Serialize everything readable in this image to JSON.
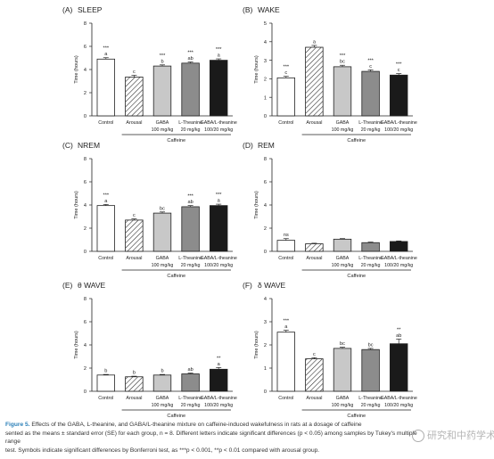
{
  "figure": {
    "caption_label": "Figure 5.",
    "caption_lines": [
      "Effects of the GABA, L-theanine, and GABA/L-theanine mixture on caffeine-induced wakefulness in rats at a dosage of caffeine",
      "sented as the means ± standard error (SE) for each group, n = 8. Different letters indicate significant differences (p < 0.05) among samples by Tukey's multiple range",
      "test. Symbols indicate significant differences by Bonferroni test, as ***p < 0.001, **p < 0.01 compared with arousal group."
    ],
    "watermark": "研究和中药学术"
  },
  "chart_data": [
    {
      "panel": "(A)",
      "title": "SLEEP",
      "type": "bar",
      "ylabel": "Time (hours)",
      "ylim": [
        0,
        8
      ],
      "yticks": [
        0,
        2,
        4,
        6,
        8
      ],
      "categories": [
        "Control",
        "Arousal",
        "GABA",
        "L-Theanine",
        "GABA/L-theanine"
      ],
      "dose_labels": [
        "",
        "",
        "100 mg/kg",
        "20 mg/kg",
        "100/20 mg/kg"
      ],
      "group_label": "Caffeine",
      "values": [
        4.9,
        3.35,
        4.3,
        4.55,
        4.8
      ],
      "errors": [
        0.12,
        0.15,
        0.1,
        0.1,
        0.12
      ],
      "letters": [
        "a",
        "c",
        "b",
        "ab",
        "a"
      ],
      "stars": [
        "***",
        "",
        "***",
        "***",
        "***"
      ]
    },
    {
      "panel": "(B)",
      "title": "WAKE",
      "type": "bar",
      "ylabel": "Time (hours)",
      "ylim": [
        0,
        5
      ],
      "yticks": [
        0,
        1,
        2,
        3,
        4,
        5
      ],
      "categories": [
        "Control",
        "Arousal",
        "GABA",
        "L-Theanine",
        "GABA/L-theanine"
      ],
      "dose_labels": [
        "",
        "",
        "100 mg/kg",
        "20 mg/kg",
        "100/20 mg/kg"
      ],
      "group_label": "Caffeine",
      "values": [
        2.05,
        3.7,
        2.65,
        2.4,
        2.2
      ],
      "errors": [
        0.08,
        0.1,
        0.08,
        0.08,
        0.08
      ],
      "letters": [
        "c",
        "a",
        "bc",
        "c",
        "c"
      ],
      "stars": [
        "***",
        "",
        "***",
        "***",
        "***"
      ]
    },
    {
      "panel": "(C)",
      "title": "NREM",
      "type": "bar",
      "ylabel": "Time (hours)",
      "ylim": [
        0,
        8
      ],
      "yticks": [
        0,
        2,
        4,
        6,
        8
      ],
      "categories": [
        "Control",
        "Arousal",
        "GABA",
        "L-Theanine",
        "GABA/L-theanine"
      ],
      "dose_labels": [
        "",
        "",
        "100 mg/kg",
        "20 mg/kg",
        "100/20 mg/kg"
      ],
      "group_label": "Caffeine",
      "values": [
        3.95,
        2.7,
        3.3,
        3.85,
        3.95
      ],
      "errors": [
        0.1,
        0.1,
        0.1,
        0.1,
        0.12
      ],
      "letters": [
        "a",
        "c",
        "bc",
        "ab",
        "a"
      ],
      "stars": [
        "***",
        "",
        "",
        "***",
        "***"
      ]
    },
    {
      "panel": "(D)",
      "title": "REM",
      "type": "bar",
      "ylabel": "Time (hours)",
      "ylim": [
        0,
        8
      ],
      "yticks": [
        0,
        2,
        4,
        6,
        8
      ],
      "categories": [
        "Control",
        "Arousal",
        "GABA",
        "L-Theanine",
        "GABA/L-theanine"
      ],
      "dose_labels": [
        "",
        "",
        "100 mg/kg",
        "20 mg/kg",
        "100/20 mg/kg"
      ],
      "group_label": "Caffeine",
      "values": [
        0.95,
        0.65,
        1.05,
        0.75,
        0.85
      ],
      "errors": [
        0.15,
        0.05,
        0.05,
        0.05,
        0.05
      ],
      "letters": [
        "",
        "",
        "",
        "",
        ""
      ],
      "stars": [
        "ns",
        "",
        "",
        "",
        ""
      ]
    },
    {
      "panel": "(E)",
      "title": "θ WAVE",
      "type": "bar",
      "ylabel": "Time (hours)",
      "ylim": [
        0,
        8
      ],
      "yticks": [
        0,
        2,
        4,
        6,
        8
      ],
      "categories": [
        "Control",
        "Arousal",
        "GABA",
        "L-Theanine",
        "GABA/L-theanine"
      ],
      "dose_labels": [
        "",
        "",
        "100 mg/kg",
        "20 mg/kg",
        "100/20 mg/kg"
      ],
      "group_label": "Caffeine",
      "values": [
        1.4,
        1.25,
        1.4,
        1.5,
        1.9
      ],
      "errors": [
        0.05,
        0.05,
        0.05,
        0.07,
        0.15
      ],
      "letters": [
        "b",
        "b",
        "b",
        "ab",
        "a"
      ],
      "stars": [
        "",
        "",
        "",
        "",
        "**"
      ]
    },
    {
      "panel": "(F)",
      "title": "δ WAVE",
      "type": "bar",
      "ylabel": "Time (hours)",
      "ylim": [
        0,
        4
      ],
      "yticks": [
        0,
        1,
        2,
        3,
        4
      ],
      "categories": [
        "Control",
        "Arousal",
        "GABA",
        "L-Theanine",
        "GABA/L-theanine"
      ],
      "dose_labels": [
        "",
        "",
        "100 mg/kg",
        "20 mg/kg",
        "100/20 mg/kg"
      ],
      "group_label": "Caffeine",
      "values": [
        2.55,
        1.4,
        1.85,
        1.8,
        2.05
      ],
      "errors": [
        0.08,
        0.05,
        0.05,
        0.05,
        0.2
      ],
      "letters": [
        "a",
        "c",
        "bc",
        "bc",
        "ab"
      ],
      "stars": [
        "***",
        "",
        "",
        "",
        "**"
      ]
    }
  ],
  "colors": {
    "fills": [
      "#ffffff",
      "hatch",
      "#c8c8c8",
      "#8c8c8c",
      "#1a1a1a"
    ],
    "axis": "#222222",
    "caption_accent": "#2a7fb8"
  }
}
